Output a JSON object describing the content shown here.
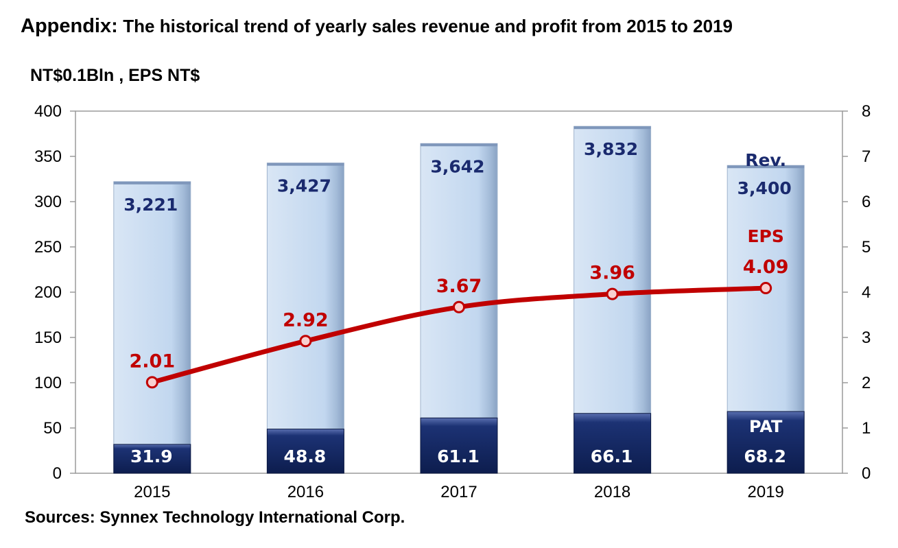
{
  "title_lead": "Appendix:",
  "title_rest": "The historical trend of yearly sales revenue and profit from 2015 to 2019",
  "unit_label": "NT$0.1Bln , EPS NT$",
  "source": "Sources: Synnex Technology International Corp.",
  "chart_data": {
    "type": "bar",
    "categories": [
      "2015",
      "2016",
      "2017",
      "2018",
      "2019"
    ],
    "y_left_range": [
      0,
      400
    ],
    "y_left_ticks": [
      "0",
      "50",
      "100",
      "150",
      "200",
      "250",
      "300",
      "350",
      "400"
    ],
    "y_right_range": [
      0,
      8
    ],
    "y_right_ticks": [
      "0",
      "1",
      "2",
      "3",
      "4",
      "5",
      "6",
      "7",
      "8"
    ],
    "grid": false,
    "series": [
      {
        "name": "Rev.",
        "type": "bar",
        "axis": "left",
        "values": [
          322.1,
          342.7,
          364.2,
          383.2,
          340.0
        ],
        "labels": [
          "3,221",
          "3,427",
          "3,642",
          "3,832",
          "3,400"
        ],
        "color": "#c5d9f1"
      },
      {
        "name": "PAT",
        "type": "bar",
        "axis": "left",
        "values": [
          31.9,
          48.8,
          61.1,
          66.1,
          68.2
        ],
        "labels": [
          "31.9",
          "48.8",
          "61.1",
          "66.1",
          "68.2"
        ],
        "color": "#17306b"
      },
      {
        "name": "EPS",
        "type": "line",
        "axis": "right",
        "values": [
          2.01,
          2.92,
          3.67,
          3.96,
          4.09
        ],
        "labels": [
          "2.01",
          "2.92",
          "3.67",
          "3.96",
          "4.09"
        ],
        "color": "#c00000"
      }
    ]
  }
}
